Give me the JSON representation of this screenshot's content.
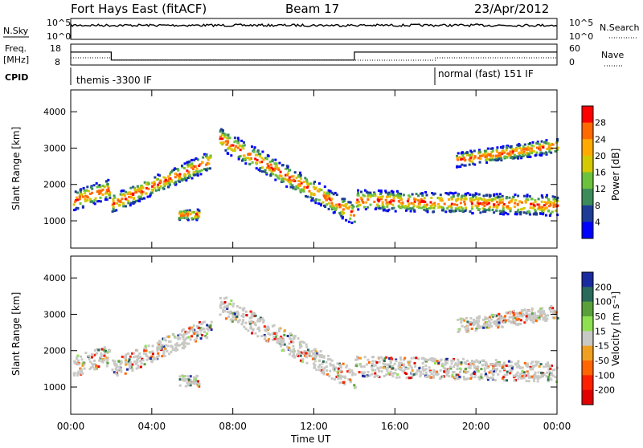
{
  "header": {
    "station": "Fort Hays East (fitACF)",
    "beam": "Beam 17",
    "date": "23/Apr/2012"
  },
  "summary": {
    "nsky_label": "N.Sky",
    "nsky_ticks": [
      "10^5",
      "10^0"
    ],
    "nsearch_label": "N.Search",
    "nsearch_ticks": [
      "10^5",
      "10^0"
    ],
    "freq_label": "Freq.",
    "freq_unit": "[MHz]",
    "freq_ticks": [
      "18",
      "8"
    ],
    "nave_label": "Nave",
    "nave_ticks": [
      "60",
      "0"
    ],
    "cpid_label": "CPID",
    "cpid_segments": [
      {
        "label": "themis -3300 IF",
        "start_hour": 0
      },
      {
        "label": "normal (fast) 151 IF",
        "start_hour": 18
      }
    ],
    "freq_steps": [
      {
        "from_hour": 0,
        "to_hour": 2,
        "freq_mhz": 14.2
      },
      {
        "from_hour": 2,
        "to_hour": 14,
        "freq_mhz": 10.4
      },
      {
        "from_hour": 14,
        "to_hour": 24,
        "freq_mhz": 14.2
      }
    ]
  },
  "chart_data": [
    {
      "type": "heatmap",
      "title": "",
      "xlabel": "Time UT",
      "ylabel": "Slant Range [km]",
      "xlim": [
        0,
        24
      ],
      "ylim": [
        250,
        4600
      ],
      "x_ticks": [
        "00:00",
        "04:00",
        "08:00",
        "12:00",
        "16:00",
        "20:00",
        "00:00"
      ],
      "y_ticks": [
        "1000",
        "2000",
        "3000",
        "4000"
      ],
      "colorbar": {
        "label": "Power [dB]",
        "ticks": [
          "28",
          "24",
          "20",
          "16",
          "12",
          "8",
          "4"
        ],
        "colors": [
          "#ff0000",
          "#ff6a00",
          "#ffaa00",
          "#d4c800",
          "#6cc23c",
          "#3c8c5a",
          "#1c3c96",
          "#0000ff"
        ]
      }
    },
    {
      "type": "heatmap",
      "title": "",
      "xlabel": "Time UT",
      "ylabel": "Slant Range [km]",
      "xlim": [
        0,
        24
      ],
      "ylim": [
        250,
        4600
      ],
      "x_ticks": [
        "00:00",
        "04:00",
        "08:00",
        "12:00",
        "16:00",
        "20:00",
        "00:00"
      ],
      "y_ticks": [
        "1000",
        "2000",
        "3000",
        "4000"
      ],
      "colorbar": {
        "label": "Velocity [m s⁻¹]",
        "ticks": [
          "200",
          "100",
          "50",
          "15",
          "-15",
          "-50",
          "-100",
          "-200"
        ],
        "colors": [
          "#1a2aa0",
          "#2a6a5a",
          "#5aa03a",
          "#8ee050",
          "#c8c8c4",
          "#f0a020",
          "#ff6600",
          "#ff2000",
          "#e00000"
        ]
      }
    }
  ],
  "x_axis": {
    "label": "Time UT",
    "ticks": [
      "00:00",
      "04:00",
      "08:00",
      "12:00",
      "16:00",
      "20:00",
      "00:00"
    ]
  }
}
